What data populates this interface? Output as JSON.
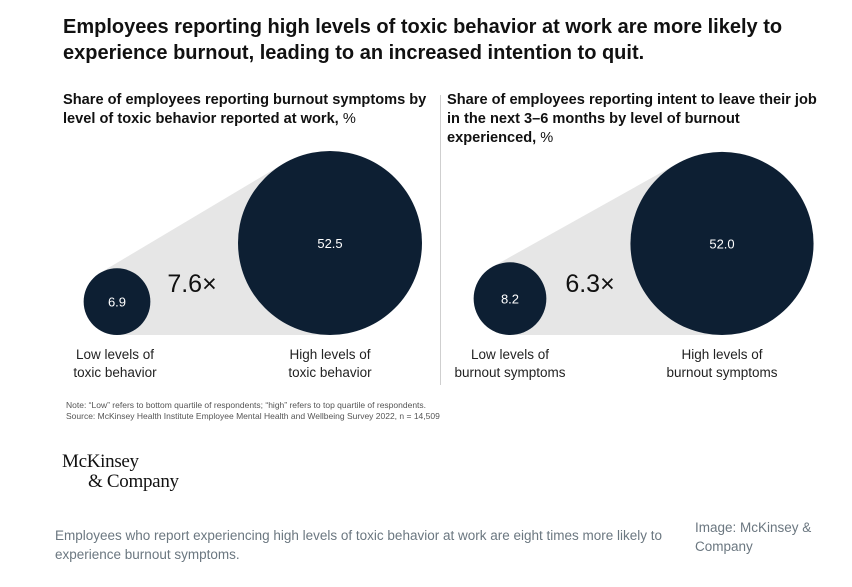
{
  "headline": "Employees reporting high levels of toxic behavior at work are more likely to experience burnout, leading to an increased intention to quit.",
  "note_line1": "Note: “Low” refers to bottom quartile of respondents; “high” refers to top quartile of respondents.",
  "note_line2": "Source: McKinsey Health Institute Employee Mental Health and Wellbeing Survey 2022, n = 14,509",
  "logo": {
    "line1": "McKinsey",
    "line2": "& Company"
  },
  "caption": "Employees who report experiencing high levels of toxic behavior at work are eight times more likely to experience burnout symptoms.",
  "credit": "Image: McKinsey & Company",
  "colors": {
    "circle": "#0d1f33",
    "cone": "#e6e6e6",
    "background": "#ffffff"
  },
  "chart_data": [
    {
      "type": "bubble",
      "title": "Share of employees reporting burnout symptoms by level of toxic behavior reported at work,",
      "unit": "%",
      "categories": [
        "Low levels of toxic behavior",
        "High levels of toxic behavior"
      ],
      "category_lines": [
        [
          "Low levels of",
          "toxic behavior"
        ],
        [
          "High levels of",
          "toxic behavior"
        ]
      ],
      "values": [
        6.9,
        52.5
      ],
      "value_labels": [
        "6.9",
        "52.5"
      ],
      "ratio_label": "7.6×"
    },
    {
      "type": "bubble",
      "title": "Share of employees reporting intent to leave their job in the next 3–6 months by level of burnout experienced,",
      "unit": "%",
      "categories": [
        "Low levels of burnout symptoms",
        "High levels of burnout symptoms"
      ],
      "category_lines": [
        [
          "Low levels of",
          "burnout symptoms"
        ],
        [
          "High levels of",
          "burnout symptoms"
        ]
      ],
      "values": [
        8.2,
        52.0
      ],
      "value_labels": [
        "8.2",
        "52.0"
      ],
      "ratio_label": "6.3×"
    }
  ]
}
